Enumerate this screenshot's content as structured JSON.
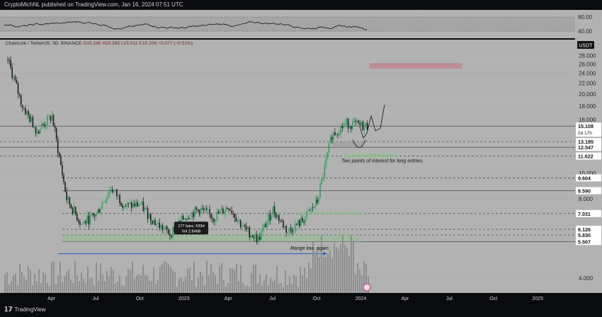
{
  "header": {
    "publisher": "CryptoMichNL published on TradingView.com, Jan 16, 2024 07:51 UTC"
  },
  "legend": {
    "symbol": "ChainLink / TetherUS, 3D, BINANCE",
    "ohlc": "O15.185 H15.365 L15.011 C15.108 −0.077 (−0.51%)"
  },
  "rsi": {
    "levels": [
      "80.00",
      "40.00"
    ]
  },
  "price_axis": {
    "unit_label": "USDT",
    "ticks": [
      "28.000",
      "26.000",
      "24.000",
      "22.000",
      "20.000",
      "18.000",
      "16.000",
      "10.000",
      "8.000",
      "4.000"
    ],
    "badges": [
      {
        "value": "15.108",
        "sub": "2d 17h",
        "bg": "#ffffff",
        "fg": "#111111"
      },
      {
        "value": "13.185",
        "bg": "#ffffff",
        "fg": "#111111"
      },
      {
        "value": "12.547",
        "bg": "#ffffff",
        "fg": "#111111"
      },
      {
        "value": "11.622",
        "bg": "#ffffff",
        "fg": "#111111"
      },
      {
        "value": "9.604",
        "bg": "#ffffff",
        "fg": "#111111"
      },
      {
        "value": "8.590",
        "bg": "#ffffff",
        "fg": "#111111"
      },
      {
        "value": "7.031",
        "bg": "#ffffff",
        "fg": "#111111"
      },
      {
        "value": "6.126",
        "bg": "#ffffff",
        "fg": "#111111"
      },
      {
        "value": "5.830",
        "bg": "#ffffff",
        "fg": "#111111"
      },
      {
        "value": "5.507",
        "bg": "#ffffff",
        "fg": "#111111"
      }
    ]
  },
  "time_axis": {
    "labels": [
      "Apr",
      "Jul",
      "Oct",
      "2023",
      "Apr",
      "Jul",
      "Oct",
      "2024",
      "Apr",
      "Jul",
      "Oct",
      "2025"
    ]
  },
  "annotations": {
    "poi_text": "Two points of interest for long entries.",
    "range_text": "Range low, again.",
    "measure_line1": "177 bars, 533d",
    "measure_line2": "Vol 2.846B"
  },
  "branding": {
    "logo_text": "TradingView"
  },
  "colors": {
    "up": "#26a65b",
    "down": "#1e1e1e",
    "supply_zone": "#c0828c",
    "demand_zone": "#8fc08f",
    "range_arrow": "#3b6fc9"
  },
  "chart_data": {
    "type": "candlestick",
    "title": "ChainLink / TetherUS, 3D, BINANCE",
    "xlabel": "",
    "ylabel": "",
    "ylim": [
      3.5,
      28.5
    ],
    "scale": "log",
    "x_labels": [
      "Apr",
      "Jul",
      "Oct",
      "2023",
      "Apr",
      "Jul",
      "Oct",
      "2024",
      "Apr",
      "Jul",
      "Oct",
      "2025"
    ],
    "price_path": [
      [
        "2022-01",
        27.0
      ],
      [
        "2022-02",
        18.0
      ],
      [
        "2022-03",
        14.5
      ],
      [
        "2022-04",
        16.5
      ],
      [
        "2022-05",
        8.0
      ],
      [
        "2022-06",
        6.4
      ],
      [
        "2022-07",
        7.0
      ],
      [
        "2022-08",
        8.8
      ],
      [
        "2022-09",
        7.5
      ],
      [
        "2022-10",
        7.6
      ],
      [
        "2022-11",
        6.5
      ],
      [
        "2022-12",
        5.9
      ],
      [
        "2023-01",
        6.8
      ],
      [
        "2023-02",
        7.3
      ],
      [
        "2023-03",
        6.8
      ],
      [
        "2023-04",
        7.5
      ],
      [
        "2023-05",
        6.2
      ],
      [
        "2023-06",
        5.6
      ],
      [
        "2023-07",
        7.3
      ],
      [
        "2023-08",
        6.0
      ],
      [
        "2023-09",
        6.6
      ],
      [
        "2023-10",
        7.8
      ],
      [
        "2023-11",
        14.0
      ],
      [
        "2023-12",
        15.5
      ],
      [
        "2024-01",
        15.108
      ]
    ],
    "levels": [
      15.108,
      13.185,
      12.547,
      11.622,
      9.604,
      8.59,
      7.031,
      6.126,
      5.83,
      5.507
    ],
    "supply_zone": [
      25.0,
      26.2
    ],
    "rsi_levels": [
      80,
      40
    ]
  }
}
